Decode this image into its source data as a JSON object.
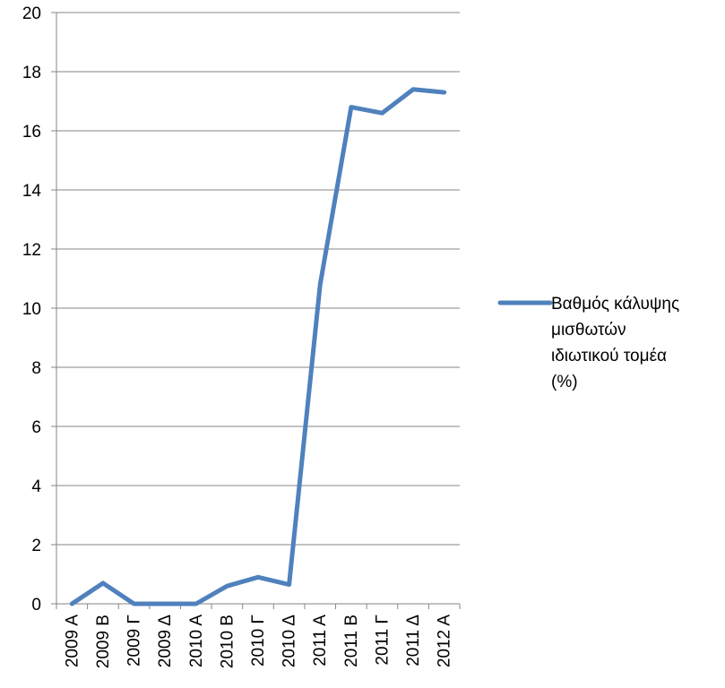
{
  "chart_data": {
    "type": "line",
    "title": "",
    "xlabel": "",
    "ylabel": "",
    "categories": [
      "2009 Α",
      "2009 Β",
      "2009 Γ",
      "2009 Δ",
      "2010 Α",
      "2010 Β",
      "2010 Γ",
      "2010 Δ",
      "2011 Α",
      "2011 Β",
      "2011 Γ",
      "2011 Δ",
      "2012 Α"
    ],
    "series": [
      {
        "name": "Βαθμός κάλυψης μισθωτών ιδιωτικού τομέα (%)",
        "name_lines": [
          "Βαθμός κάλυψης",
          "μισθωτών",
          "ιδιωτικού τομέα",
          "(%)"
        ],
        "values": [
          0,
          0.7,
          0,
          0,
          0,
          0.6,
          0.9,
          0.65,
          10.8,
          16.8,
          16.6,
          17.4,
          17.3
        ],
        "color": "#4f81bd"
      }
    ],
    "ylim": [
      0,
      20
    ],
    "yticks": [
      0,
      2,
      4,
      6,
      8,
      10,
      12,
      14,
      16,
      18,
      20
    ],
    "grid": true,
    "legend": "right"
  }
}
